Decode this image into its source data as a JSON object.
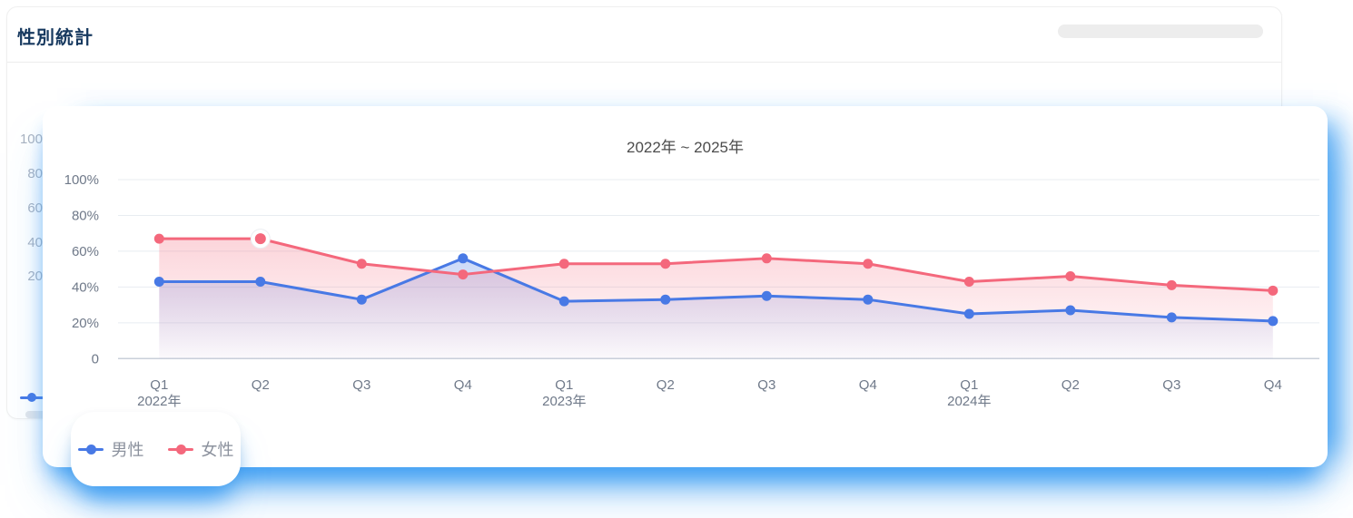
{
  "header": {
    "title": "性別統計"
  },
  "bg_chart": {
    "y_ticks": [
      "100",
      "80",
      "60",
      "40",
      "20"
    ],
    "legend_color": "#4879e5"
  },
  "chart_data": {
    "type": "line",
    "title": "2022年 ~ 2025年",
    "xlabel": "",
    "ylabel": "",
    "ylim": [
      0,
      100
    ],
    "grid": true,
    "legend_position": "bottom-left-floating-card",
    "y_ticks": [
      {
        "label": "100%",
        "value": 100
      },
      {
        "label": "80%",
        "value": 80
      },
      {
        "label": "60%",
        "value": 60
      },
      {
        "label": "40%",
        "value": 40
      },
      {
        "label": "20%",
        "value": 20
      },
      {
        "label": "0",
        "value": 0
      }
    ],
    "x_ticks": [
      {
        "q": "Q1",
        "year": "2022年"
      },
      {
        "q": "Q2",
        "year": ""
      },
      {
        "q": "Q3",
        "year": ""
      },
      {
        "q": "Q4",
        "year": ""
      },
      {
        "q": "Q1",
        "year": "2023年"
      },
      {
        "q": "Q2",
        "year": ""
      },
      {
        "q": "Q3",
        "year": ""
      },
      {
        "q": "Q4",
        "year": ""
      },
      {
        "q": "Q1",
        "year": "2024年"
      },
      {
        "q": "Q2",
        "year": ""
      },
      {
        "q": "Q3",
        "year": ""
      },
      {
        "q": "Q4",
        "year": ""
      }
    ],
    "series": [
      {
        "name": "男性",
        "color": "#4879e5",
        "values": [
          43,
          43,
          33,
          56,
          32,
          33,
          35,
          33,
          25,
          27,
          23,
          21
        ]
      },
      {
        "name": "女性",
        "color": "#f4687c",
        "values": [
          67,
          67,
          53,
          47,
          53,
          53,
          56,
          53,
          43,
          46,
          41,
          38
        ]
      }
    ],
    "highlight": {
      "series_name": "女性",
      "category_index": 1
    }
  },
  "colors": {
    "glow_blue": "#42a0f3",
    "grid_line": "#e8ecf1",
    "axis_line": "#c9d0da",
    "tick_text": "#6f7989",
    "title_navy": "#17395f"
  }
}
